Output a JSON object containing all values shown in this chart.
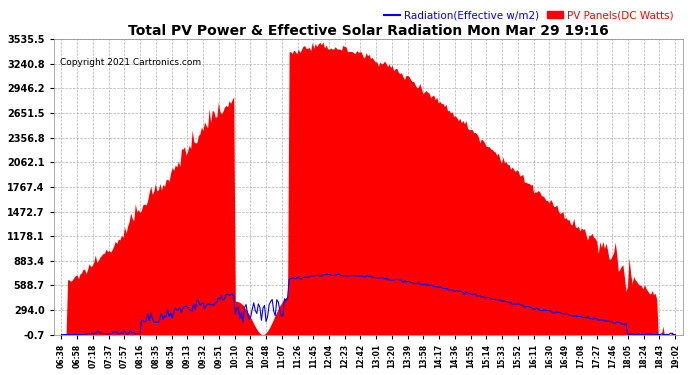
{
  "title": "Total PV Power & Effective Solar Radiation Mon Mar 29 19:16",
  "copyright": "Copyright 2021 Cartronics.com",
  "legend_radiation": "Radiation(Effective w/m2)",
  "legend_panels": "PV Panels(DC Watts)",
  "yticks": [
    3535.5,
    3240.8,
    2946.2,
    2651.5,
    2356.8,
    2062.1,
    1767.4,
    1472.7,
    1178.1,
    883.4,
    588.7,
    294.0,
    -0.7
  ],
  "ylim": [
    -0.7,
    3535.5
  ],
  "background_color": "#ffffff",
  "plot_bg_color": "#ffffff",
  "grid_color": "#aaaaaa",
  "title_color": "#000000",
  "copyright_color": "#000000",
  "radiation_color": "#0000ff",
  "panel_color": "#ff0000",
  "ytick_color": "#000000",
  "xtick_labels": [
    "06:38",
    "06:58",
    "07:18",
    "07:37",
    "07:57",
    "08:16",
    "08:35",
    "08:54",
    "09:13",
    "09:32",
    "09:51",
    "10:10",
    "10:29",
    "10:48",
    "11:07",
    "11:26",
    "11:45",
    "12:04",
    "12:23",
    "12:42",
    "13:01",
    "13:20",
    "13:39",
    "13:58",
    "14:17",
    "14:36",
    "14:55",
    "15:14",
    "15:33",
    "15:52",
    "16:11",
    "16:30",
    "16:49",
    "17:08",
    "17:27",
    "17:46",
    "18:05",
    "18:24",
    "18:43",
    "19:02"
  ]
}
